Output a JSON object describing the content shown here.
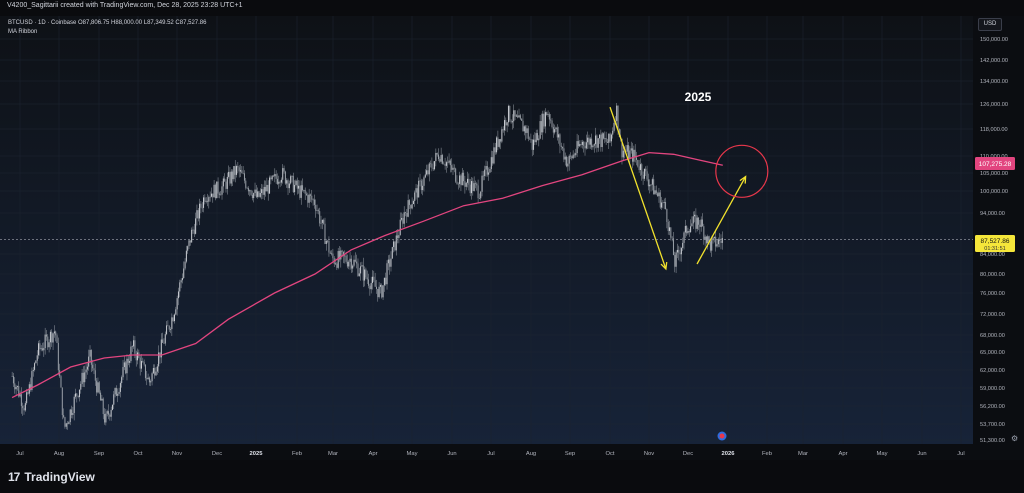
{
  "topbar": {
    "credit": "V4200_Sagittarii created with TradingView.com, Dec 28, 2025 23:28 UTC+1"
  },
  "legend": {
    "symbol_line": "BTCUSD · 1D · Coinbase  O87,806.75  H88,000.00  L87,349.52  C87,527.86",
    "indicator": "MA Ribbon"
  },
  "currency_button": "USD",
  "brand": {
    "mark": "17",
    "name": "TradingView"
  },
  "colors": {
    "background_top": "#0e1116",
    "background_bottom": "#172338",
    "candles": "#9aa0a8",
    "ma_line": "#e2457f",
    "annotation": "#f2e22d",
    "circle": "#e8374b",
    "last_price_badge": "#f5e63a",
    "ma_badge": "#e2457f"
  },
  "chart_data": {
    "type": "line",
    "title": "BTCUSD · 1D · Coinbase",
    "annotation_text": "2025",
    "y_scale": "log",
    "ylim": [
      51000,
      158000
    ],
    "y_ticks": [
      "150,000.00",
      "142,000.00",
      "134,000.00",
      "126,000.00",
      "118,000.00",
      "110,000.00",
      "105,000.00",
      "100,000.00",
      "94,000.00",
      "84,000.00",
      "80,000.00",
      "76,000.00",
      "72,000.00",
      "68,000.00",
      "65,000.00",
      "62,000.00",
      "59,000.00",
      "56,200.00",
      "53,700.00",
      "51,300.00"
    ],
    "x_ticks": [
      "Jul",
      "Aug",
      "Sep",
      "Oct",
      "Nov",
      "Dec",
      "2025",
      "Feb",
      "Mar",
      "Apr",
      "May",
      "Jun",
      "Jul",
      "Aug",
      "Sep",
      "Oct",
      "Nov",
      "Dec",
      "2026",
      "Feb",
      "Mar",
      "Apr",
      "May",
      "Jun",
      "Jul"
    ],
    "price_series": {
      "name": "BTCUSD",
      "dates": [
        "2024-06-25",
        "2024-07-05",
        "2024-07-15",
        "2024-07-29",
        "2024-08-05",
        "2024-08-25",
        "2024-09-06",
        "2024-09-27",
        "2024-10-10",
        "2024-10-29",
        "2024-11-12",
        "2024-11-22",
        "2024-12-05",
        "2024-12-17",
        "2025-01-02",
        "2025-01-20",
        "2025-02-03",
        "2025-02-15",
        "2025-02-28",
        "2025-03-15",
        "2025-04-07",
        "2025-04-25",
        "2025-05-10",
        "2025-05-22",
        "2025-06-05",
        "2025-06-22",
        "2025-07-14",
        "2025-07-28",
        "2025-08-02",
        "2025-08-14",
        "2025-08-30",
        "2025-09-10",
        "2025-09-20",
        "2025-10-01",
        "2025-10-06",
        "2025-10-10",
        "2025-10-20",
        "2025-11-04",
        "2025-11-14",
        "2025-11-21",
        "2025-12-01",
        "2025-12-10",
        "2025-12-18",
        "2025-12-28"
      ],
      "values": [
        61000,
        56000,
        65000,
        69000,
        53000,
        64000,
        54000,
        66000,
        60000,
        72000,
        89000,
        99000,
        101000,
        106000,
        98000,
        105000,
        100000,
        97000,
        83000,
        83000,
        76000,
        94000,
        103000,
        111000,
        104000,
        100000,
        123000,
        118000,
        113000,
        124000,
        108000,
        114000,
        115000,
        114000,
        125000,
        112000,
        110000,
        101000,
        95000,
        82000,
        91000,
        92000,
        86000,
        87527.86
      ]
    },
    "ma_series": {
      "name": "MA Ribbon",
      "dates": [
        "2024-06-25",
        "2024-07-15",
        "2024-08-10",
        "2024-09-05",
        "2024-09-27",
        "2024-10-20",
        "2024-11-15",
        "2024-12-10",
        "2025-01-15",
        "2025-02-15",
        "2025-03-15",
        "2025-04-10",
        "2025-05-10",
        "2025-06-10",
        "2025-07-10",
        "2025-08-10",
        "2025-09-10",
        "2025-10-10",
        "2025-11-01",
        "2025-11-20",
        "2025-12-10",
        "2025-12-28"
      ],
      "values": [
        57500,
        59500,
        62500,
        64000,
        64500,
        64500,
        66500,
        71000,
        76000,
        80000,
        85000,
        88500,
        92000,
        96000,
        98000,
        101500,
        104500,
        108500,
        111000,
        110500,
        108800,
        107275.28
      ]
    },
    "last_price": {
      "value": "87,527.86",
      "countdown": "01:31:51"
    },
    "ma_last": {
      "value": "107,275.28"
    },
    "annotations": [
      {
        "type": "arrow",
        "from": [
          "2025-10-01",
          125000
        ],
        "to": [
          "2025-11-14",
          81000
        ]
      },
      {
        "type": "arrow",
        "from": [
          "2025-12-08",
          82000
        ],
        "to": [
          "2026-01-15",
          104000
        ]
      },
      {
        "type": "circle",
        "center": [
          "2026-01-12",
          105500
        ]
      }
    ]
  }
}
